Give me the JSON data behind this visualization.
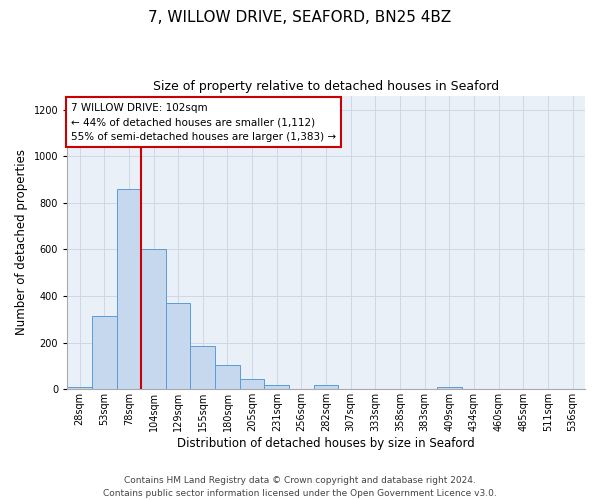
{
  "title": "7, WILLOW DRIVE, SEAFORD, BN25 4BZ",
  "subtitle": "Size of property relative to detached houses in Seaford",
  "xlabel": "Distribution of detached houses by size in Seaford",
  "ylabel": "Number of detached properties",
  "bin_labels": [
    "28sqm",
    "53sqm",
    "78sqm",
    "104sqm",
    "129sqm",
    "155sqm",
    "180sqm",
    "205sqm",
    "231sqm",
    "256sqm",
    "282sqm",
    "307sqm",
    "333sqm",
    "358sqm",
    "383sqm",
    "409sqm",
    "434sqm",
    "460sqm",
    "485sqm",
    "511sqm",
    "536sqm"
  ],
  "bar_values": [
    10,
    315,
    860,
    600,
    370,
    185,
    105,
    45,
    20,
    0,
    20,
    0,
    0,
    0,
    0,
    10,
    0,
    0,
    0,
    0,
    0
  ],
  "bar_color": "#c5d8ed",
  "bar_edge_color": "#5b9bd5",
  "vline_x": 3,
  "vline_color": "#cc0000",
  "ylim": [
    0,
    1260
  ],
  "yticks": [
    0,
    200,
    400,
    600,
    800,
    1000,
    1200
  ],
  "annotation_box_text": "7 WILLOW DRIVE: 102sqm\n← 44% of detached houses are smaller (1,112)\n55% of semi-detached houses are larger (1,383) →",
  "annotation_box_color": "#cc0000",
  "footer_line1": "Contains HM Land Registry data © Crown copyright and database right 2024.",
  "footer_line2": "Contains public sector information licensed under the Open Government Licence v3.0.",
  "grid_color": "#d0d8e8",
  "background_color": "#eaf0f8",
  "title_fontsize": 11,
  "subtitle_fontsize": 9,
  "axis_label_fontsize": 8.5,
  "tick_fontsize": 7,
  "annotation_fontsize": 7.5,
  "footer_fontsize": 6.5
}
